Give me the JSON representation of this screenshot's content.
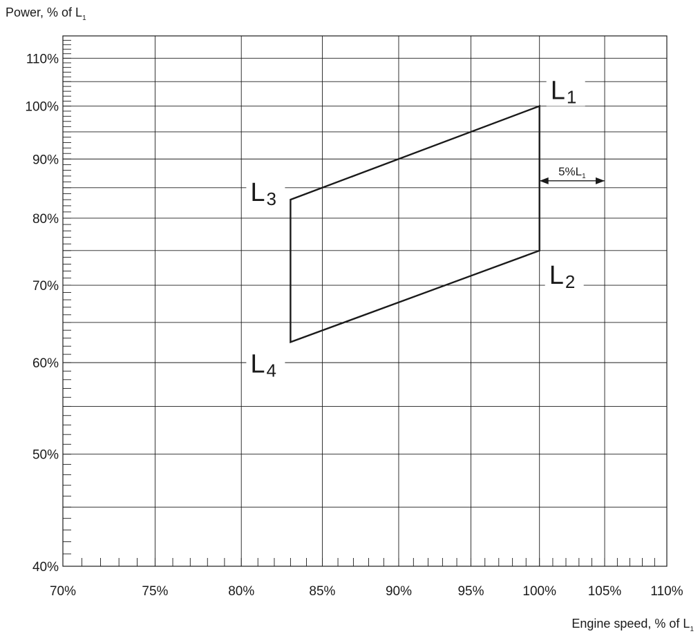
{
  "chart_data": {
    "type": "line",
    "title": "",
    "ylabel_parts": {
      "base": "Power, % of L",
      "sub": "1"
    },
    "xlabel_parts": {
      "base": "Engine speed, % of L",
      "sub": "1"
    },
    "x_scale": "log",
    "y_scale": "log",
    "xlim": [
      70,
      110
    ],
    "ylim": [
      40,
      115
    ],
    "x_ticks": [
      {
        "value": 70,
        "label": "70%"
      },
      {
        "value": 75,
        "label": "75%"
      },
      {
        "value": 80,
        "label": "80%"
      },
      {
        "value": 85,
        "label": "85%"
      },
      {
        "value": 90,
        "label": "90%"
      },
      {
        "value": 95,
        "label": "95%"
      },
      {
        "value": 100,
        "label": "100%"
      },
      {
        "value": 105,
        "label": "105%"
      },
      {
        "value": 110,
        "label": "110%"
      }
    ],
    "y_ticks": [
      {
        "value": 40,
        "label": "40%"
      },
      {
        "value": 50,
        "label": "50%"
      },
      {
        "value": 60,
        "label": "60%"
      },
      {
        "value": 70,
        "label": "70%"
      },
      {
        "value": 80,
        "label": "80%"
      },
      {
        "value": 90,
        "label": "90%"
      },
      {
        "value": 100,
        "label": "100%"
      },
      {
        "value": 110,
        "label": "110%"
      }
    ],
    "y_grid_extra": [
      45,
      55,
      65,
      75,
      85,
      95,
      105
    ],
    "grid": true,
    "series": [
      {
        "points": [
          {
            "x": 100,
            "y": 100,
            "label": "L",
            "sub": "1"
          },
          {
            "x": 100,
            "y": 75,
            "label": "L",
            "sub": "2"
          },
          {
            "x": 83,
            "y": 62.5,
            "label": "L",
            "sub": "4"
          },
          {
            "x": 83,
            "y": 83,
            "label": "L",
            "sub": "3"
          }
        ],
        "closed": true,
        "color": "#1a1a1a"
      }
    ],
    "annotations": [
      {
        "text": "5%L",
        "sub": "1",
        "x_from": 100,
        "x_to": 105,
        "y": 85
      }
    ]
  }
}
